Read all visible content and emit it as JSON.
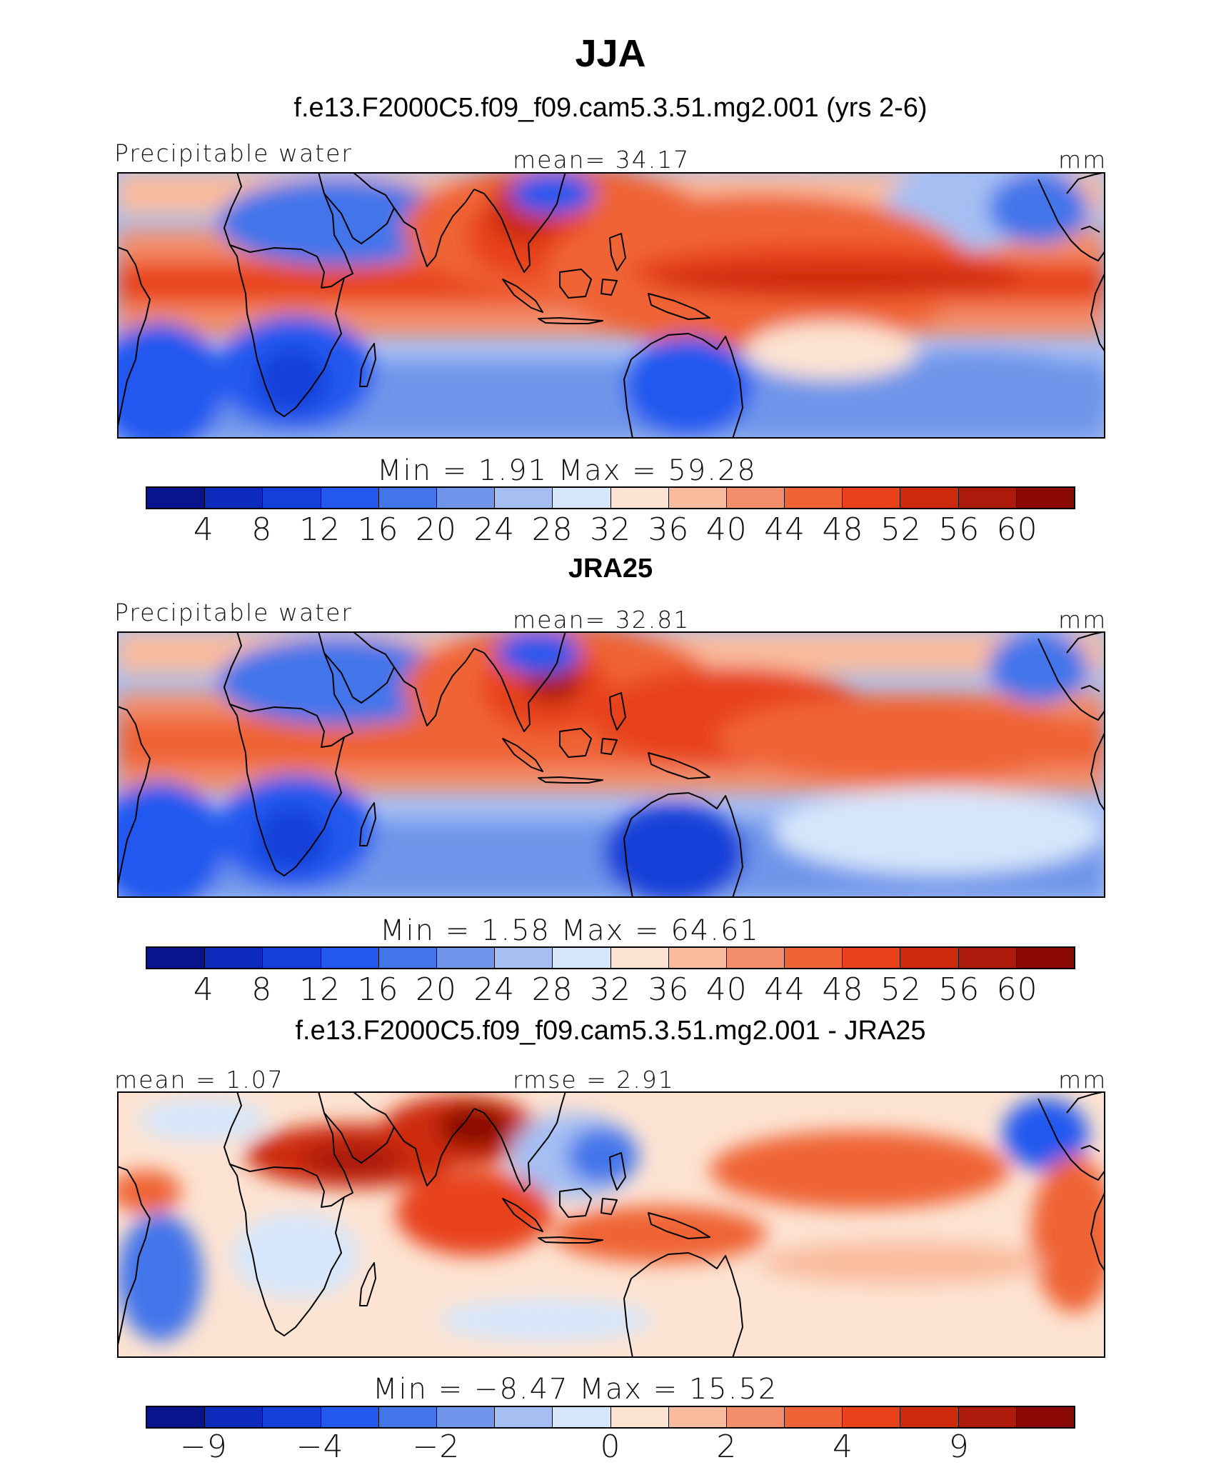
{
  "title": "JJA",
  "continent_color": "#000000",
  "panels": [
    {
      "title": "f.e13.F2000C5.f09_f09.cam5.3.51.mg2.001 (yrs 2-6)",
      "left_label": "Precipitable water",
      "center_label": "mean=  34.17",
      "right_label": "mm",
      "stats": "Min =    1.91  Max =   59.28",
      "colorbar": {
        "colors": [
          "#08148c",
          "#0c2bbd",
          "#1240d8",
          "#2358ef",
          "#4275ea",
          "#7095ea",
          "#a5bff3",
          "#d6e6fb",
          "#fde3d2",
          "#f9bb9e",
          "#f38e6c",
          "#ef6335",
          "#e8421a",
          "#cd2a0c",
          "#ab1a0a",
          "#8b0a05"
        ],
        "ticks": [
          "4",
          "8",
          "12",
          "16",
          "20",
          "24",
          "28",
          "32",
          "36",
          "40",
          "44",
          "48",
          "52",
          "56",
          "60"
        ]
      }
    },
    {
      "title": "JRA25",
      "left_label": "Precipitable water",
      "center_label": "mean=  32.81",
      "right_label": "mm",
      "stats": "Min =    1.58  Max =   64.61",
      "colorbar": {
        "colors": [
          "#08148c",
          "#0c2bbd",
          "#1240d8",
          "#2358ef",
          "#4275ea",
          "#7095ea",
          "#a5bff3",
          "#d6e6fb",
          "#fde3d2",
          "#f9bb9e",
          "#f38e6c",
          "#ef6335",
          "#e8421a",
          "#cd2a0c",
          "#ab1a0a",
          "#8b0a05"
        ],
        "ticks": [
          "4",
          "8",
          "12",
          "16",
          "20",
          "24",
          "28",
          "32",
          "36",
          "40",
          "44",
          "48",
          "52",
          "56",
          "60"
        ]
      }
    },
    {
      "title": "f.e13.F2000C5.f09_f09.cam5.3.51.mg2.001 - JRA25",
      "left_label": "mean =    1.07",
      "center_label": "rmse =   2.91",
      "right_label": "mm",
      "stats": "Min =  −8.47  Max =   15.52",
      "colorbar": {
        "colors": [
          "#08148c",
          "#0c2bbd",
          "#1240d8",
          "#2358ef",
          "#4275ea",
          "#7095ea",
          "#a5bff3",
          "#d6e6fb",
          "#fde3d2",
          "#f9bb9e",
          "#f38e6c",
          "#ef6335",
          "#e8421a",
          "#cd2a0c",
          "#ab1a0a",
          "#8b0a05"
        ],
        "ticks": [
          "−9",
          "−4",
          "−2",
          "0",
          "2",
          "4",
          "9"
        ]
      }
    }
  ]
}
